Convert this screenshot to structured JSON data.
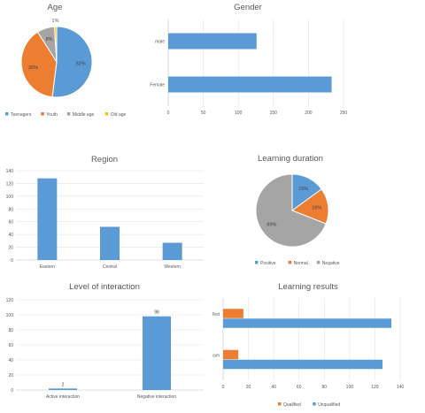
{
  "colors": {
    "blue": "#5B9BD5",
    "orange": "#ED7D31",
    "gray": "#A5A5A5",
    "yellow": "#FFC000",
    "axis": "#BFBFBF",
    "grid": "#E3E3E3"
  },
  "chart_data": [
    {
      "id": "age",
      "type": "pie",
      "title": "Age",
      "labels": [
        "Teenagers",
        "Youth",
        "Middle age",
        "Old age"
      ],
      "values": [
        52,
        39,
        8,
        1
      ],
      "value_labels": [
        "52%",
        "39%",
        "8%",
        "1%"
      ],
      "legend": "bottom"
    },
    {
      "id": "gender",
      "type": "bar",
      "orientation": "horizontal",
      "title": "Gender",
      "categories": [
        "Female",
        "male"
      ],
      "values": [
        233,
        126
      ],
      "xlim": [
        0,
        250
      ],
      "xticks": [
        0,
        50,
        100,
        150,
        200,
        250
      ],
      "grid": true
    },
    {
      "id": "region",
      "type": "bar",
      "title": "Region",
      "categories": [
        "Eastern",
        "Central",
        "Western"
      ],
      "values": [
        128,
        52,
        27
      ],
      "ylim": [
        0,
        140
      ],
      "yticks": [
        0,
        20,
        40,
        60,
        80,
        100,
        120,
        140
      ],
      "grid": true
    },
    {
      "id": "duration",
      "type": "pie",
      "title": "Learning duration",
      "labels": [
        "Positive",
        "Normal",
        "Negative"
      ],
      "values": [
        15,
        16,
        69
      ],
      "value_labels": [
        "15%",
        "16%",
        "69%"
      ],
      "legend": "bottom"
    },
    {
      "id": "interaction",
      "type": "bar",
      "title": "Level of interaction",
      "categories": [
        "Active interaction",
        "Negative interaction"
      ],
      "values": [
        2,
        98
      ],
      "data_labels": [
        "2",
        "98"
      ],
      "ylim": [
        0,
        120
      ],
      "yticks": [
        0,
        20,
        40,
        60,
        80,
        100,
        120
      ],
      "grid": true
    },
    {
      "id": "results",
      "type": "bar",
      "orientation": "horizontal",
      "title": "Learning results",
      "categories": [
        "Exam",
        "Test"
      ],
      "series": [
        {
          "name": "Qualified",
          "values": [
            12,
            16
          ]
        },
        {
          "name": "Unqualified",
          "values": [
            126,
            133
          ]
        }
      ],
      "xlim": [
        0,
        140
      ],
      "xticks": [
        0,
        20,
        40,
        60,
        80,
        100,
        120,
        140
      ],
      "grid": true,
      "legend": "bottom"
    }
  ]
}
